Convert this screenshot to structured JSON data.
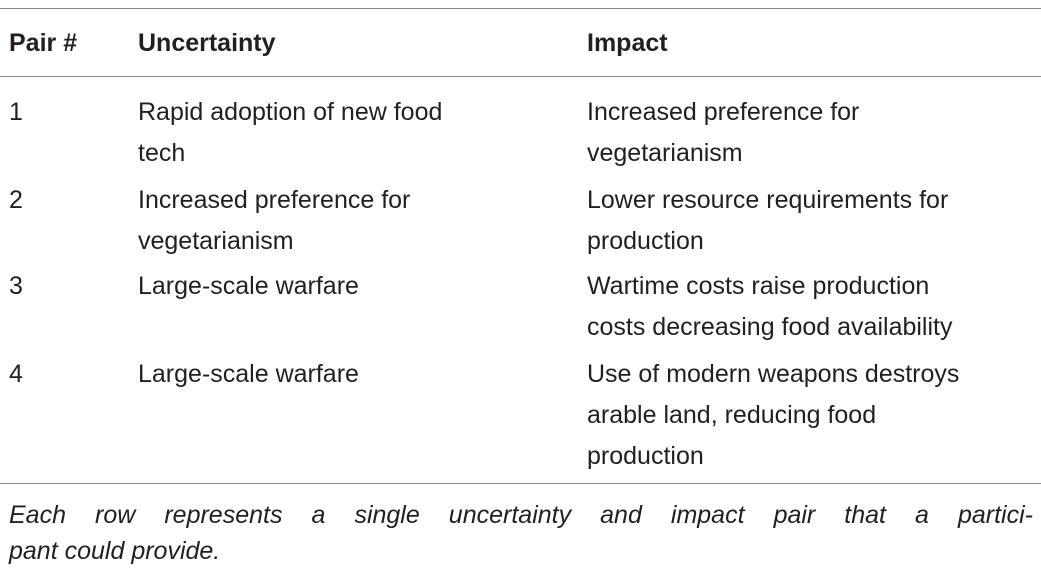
{
  "table": {
    "headers": {
      "pair": "Pair #",
      "uncertainty": "Uncertainty",
      "impact": "Impact"
    },
    "rows": [
      {
        "pair": "1",
        "uncertainty_lines": [
          "Rapid adoption of new food",
          "tech"
        ],
        "impact_lines": [
          "Increased preference for",
          "vegetarianism"
        ]
      },
      {
        "pair": "2",
        "uncertainty_lines": [
          "Increased preference for",
          "vegetarianism"
        ],
        "impact_lines": [
          "Lower resource requirements for",
          "production"
        ]
      },
      {
        "pair": "3",
        "uncertainty_lines": [
          "Large-scale warfare"
        ],
        "impact_lines": [
          "Wartime costs raise production",
          "costs decreasing food availability"
        ]
      },
      {
        "pair": "4",
        "uncertainty_lines": [
          "Large-scale warfare"
        ],
        "impact_lines": [
          "Use of modern weapons destroys",
          "arable land, reducing food",
          "production"
        ]
      }
    ]
  },
  "footnote": {
    "lines": [
      "Each row represents a single uncertainty and impact pair that a partici-",
      "pant could provide."
    ]
  }
}
